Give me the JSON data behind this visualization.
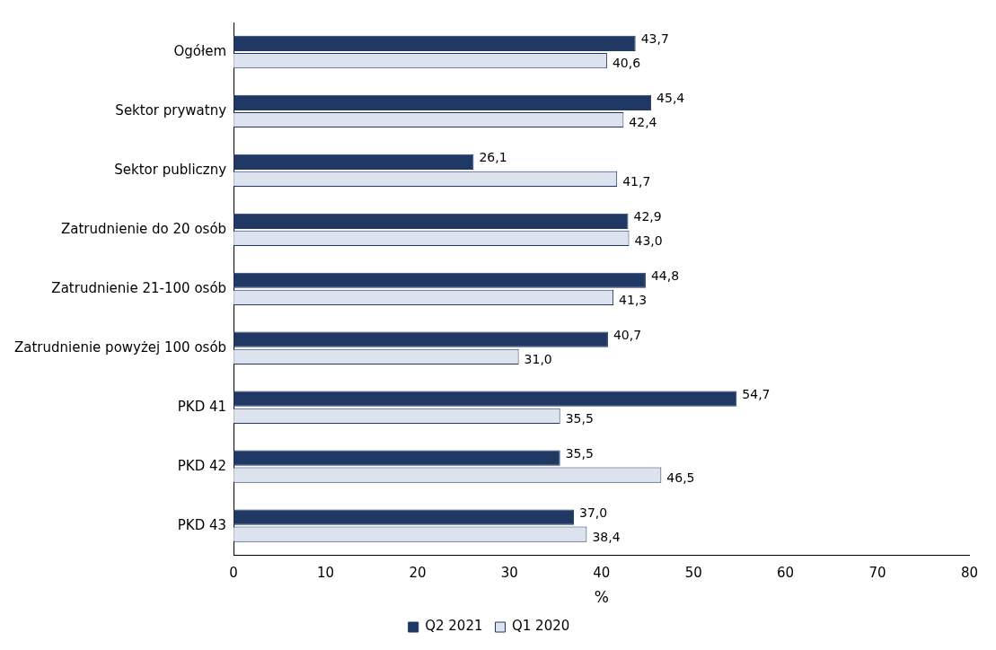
{
  "chart_data": {
    "type": "bar",
    "orientation": "horizontal",
    "xlabel": "%",
    "categories": [
      "Ogółem",
      "Sektor prywatny",
      "Sektor publiczny",
      "Zatrudnienie do 20 osób",
      "Zatrudnienie 21-100 osób",
      "Zatrudnienie powyżej 100 osób",
      "PKD 41",
      "PKD 42",
      "PKD 43"
    ],
    "series": [
      {
        "name": "Q2 2021",
        "color": "#1f3864",
        "values": [
          43.7,
          45.4,
          26.1,
          42.9,
          44.8,
          40.7,
          54.7,
          35.5,
          37.0
        ],
        "value_labels": [
          "43,7",
          "45,4",
          "26,1",
          "42,9",
          "44,8",
          "40,7",
          "54,7",
          "35,5",
          "37,0"
        ]
      },
      {
        "name": "Q1 2020",
        "color": "#dde3ee",
        "values": [
          40.6,
          42.4,
          41.7,
          43.0,
          41.3,
          31.0,
          35.5,
          46.5,
          38.4
        ],
        "value_labels": [
          "40,6",
          "42,4",
          "41,7",
          "43,0",
          "41,3",
          "31,0",
          "35,5",
          "46,5",
          "38,4"
        ]
      }
    ],
    "xlim": [
      0,
      80
    ],
    "xticks": [
      0,
      10,
      20,
      30,
      40,
      50,
      60,
      70,
      80
    ],
    "grid": false,
    "legend": "bottom"
  }
}
